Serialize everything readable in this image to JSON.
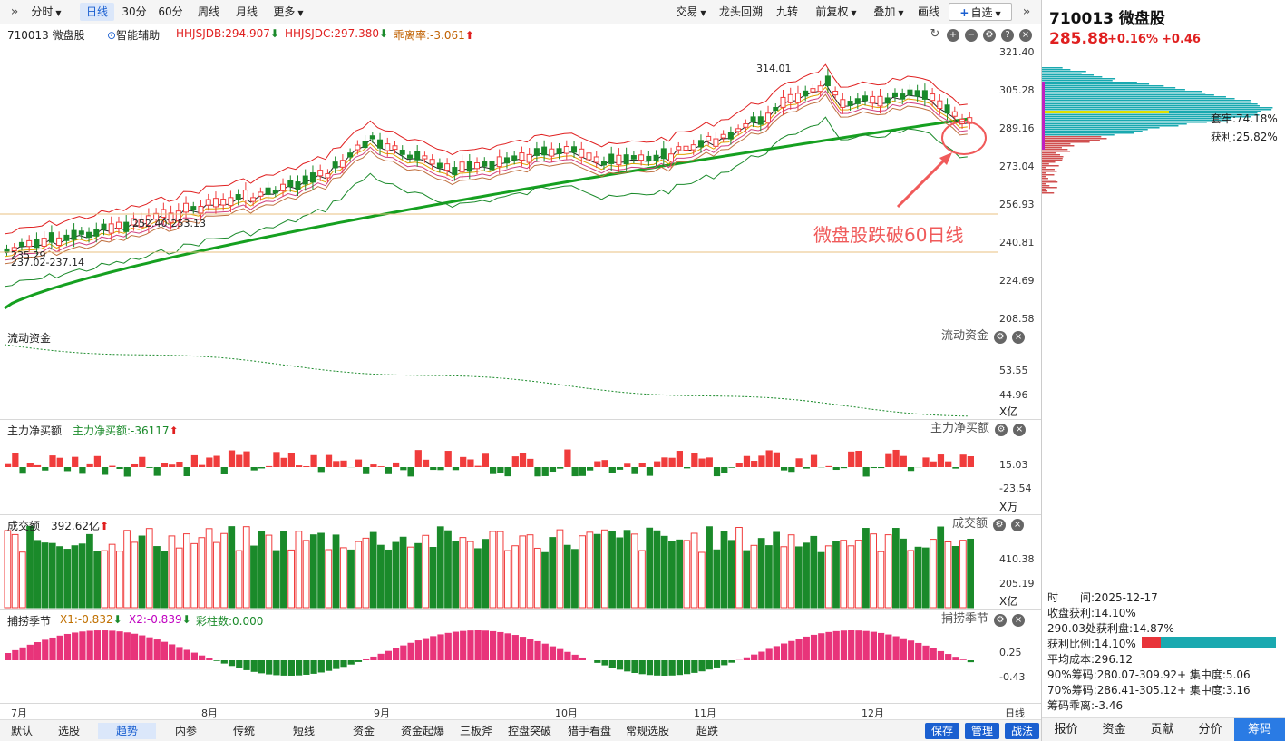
{
  "toolbar": {
    "left": [
      "分时",
      "日线",
      "30分",
      "60分",
      "周线",
      "月线",
      "更多"
    ],
    "selected": "日线",
    "right": [
      "交易",
      "龙头回溯",
      "九转",
      "前复权",
      "叠加",
      "画线"
    ],
    "fav": "自选"
  },
  "kline": {
    "stock": "710013 微盘股",
    "assist": "智能辅助",
    "ind1": "HHJSJDB:294.907",
    "ind2": "HHJSJDC:297.380",
    "ind3": "乖离率:-3.061",
    "y_ticks": [
      "321.40",
      "305.28",
      "289.16",
      "273.04",
      "256.93",
      "240.81",
      "224.69",
      "208.58"
    ],
    "labels": {
      "max": "314.01",
      "mid": "252.40-253.13",
      "low1": "235.29",
      "low2": "237.02-237.14"
    },
    "annotation": "微盘股跌破60日线"
  },
  "flow": {
    "title": "流动资金",
    "right_title": "流动资金",
    "y_ticks": [
      "53.55",
      "44.96"
    ],
    "unit": "X亿"
  },
  "main_net": {
    "title": "主力净买额",
    "value": "主力净买额:-36117",
    "right_title": "主力净买额",
    "y_ticks": [
      "15.03",
      "-23.54"
    ],
    "unit": "X万"
  },
  "volume": {
    "title": "成交额",
    "value": "392.62亿",
    "right_title": "成交额",
    "y_ticks": [
      "410.38",
      "205.19"
    ],
    "unit": "X亿"
  },
  "season": {
    "title": "捕捞季节",
    "x1": "X1:-0.832",
    "x2": "X2:-0.839",
    "color_count": "彩柱数:0.000",
    "right_title": "捕捞季节",
    "y_ticks": [
      "0.25",
      "-0.43"
    ]
  },
  "months": [
    "7月",
    "8月",
    "9月",
    "10月",
    "11月",
    "12月"
  ],
  "period_label": "日线",
  "bottom_tabs": [
    "默认",
    "选股",
    "趋势",
    "内参",
    "传统",
    "短线",
    "资金",
    "资金起爆",
    "三板斧",
    "控盘突破",
    "猎手看盘",
    "常规选股",
    "超跌"
  ],
  "bottom_selected": "趋势",
  "bottom_right": [
    "保存",
    "管理",
    "战法"
  ],
  "right_panel": {
    "title": "710013 微盘股",
    "price": "285.88",
    "pct": "+0.16%",
    "chg": "+0.46",
    "trapped": "套牢:74.18%",
    "profit": "获利:25.82%",
    "stats": [
      "时　　间:2025-12-17",
      "收盘获利:14.10%",
      "290.03处获利盘:14.87%",
      "获利比例:14.10%",
      "平均成本:296.12",
      "90%筹码:280.07-309.92+ 集中度:5.06",
      "70%筹码:286.41-305.12+ 集中度:3.16",
      "筹码乖离:-3.46"
    ],
    "profit_ratio": 0.141,
    "tabs": [
      "报价",
      "资金",
      "贡献",
      "分价",
      "筹码"
    ],
    "tab_selected": "筹码"
  },
  "colors": {
    "up": "#f03c3c",
    "down": "#1a8a2a",
    "ma60": "#15a020",
    "accent": "#1a5fd0"
  }
}
